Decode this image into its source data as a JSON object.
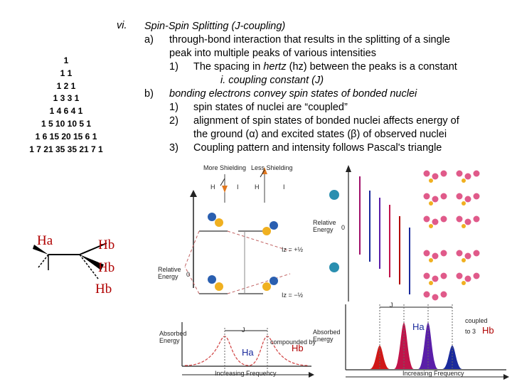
{
  "roman_numeral": "vi.",
  "pascal_rows": [
    "1",
    "1 1",
    "1 2 1",
    "1 3 3 1",
    "1 4 6 4 1",
    "1 5 10 10 5 1",
    "1 6 15 20 15 6 1",
    "1 7 21 35 35 21 7 1"
  ],
  "heading": "Spin-Spin Splitting (J-coupling)",
  "point_a": {
    "marker": "a)",
    "line1": "through-bond interaction that results in the splitting of a single",
    "line2": "peak into multiple peaks of various intensities",
    "sub1_marker": "1)",
    "sub1_pre": "The spacing in ",
    "sub1_em": "hertz",
    "sub1_post": " (hz) between the peaks is a constant",
    "sub1_i": "i. coupling constant (J)"
  },
  "point_b": {
    "marker": "b)",
    "line1": "bonding electrons convey spin states of bonded nuclei",
    "sub1_marker": "1)",
    "sub1": "spin states of nuclei are “coupled”",
    "sub2_marker": "2)",
    "sub2_line1": "alignment of spin states of bonded nuclei affects energy of",
    "sub2_line2": "the ground (α) and excited states (β) of observed nuclei",
    "sub3_marker": "3)",
    "sub3": "Coupling pattern and intensity follows Pascal's triangle"
  },
  "molecule": {
    "ha": "Ha",
    "hb1": "Hb",
    "hb2": "Hb",
    "hb3": "Hb"
  },
  "energy_diagram": {
    "more_shielding": "More Shielding",
    "less_shielding": "Less Shielding",
    "h1": "H",
    "i1": "I",
    "h2": "H",
    "i2": "I",
    "relative_energy": "Relative Energy",
    "zero": "0",
    "iz_plus": "Iz = +½",
    "iz_minus": "Iz = −½",
    "absorbed_energy": "Absorbed Energy",
    "j": "J",
    "ha_label": "Ha",
    "compounded_by": "compounded by",
    "hb_label": "Hb",
    "freq": "Increasing Frequency"
  },
  "quartet_diagram": {
    "relative_energy": "Relative Energy",
    "zero": "0",
    "absorbed_energy": "Absorbed Energy",
    "j": "J",
    "ha_label": "Ha",
    "coupled_to": "coupled",
    "to_3": "to 3",
    "hb_label": "Hb",
    "freq": "Increasing Frequency"
  },
  "colors": {
    "red": "#b00000",
    "crimson": "#c0144a",
    "purple": "#5a1ea8",
    "blue": "#1a2a9c"
  }
}
